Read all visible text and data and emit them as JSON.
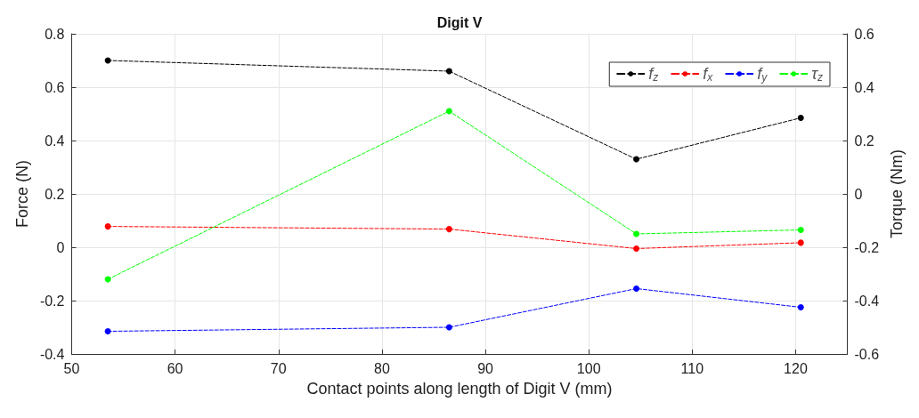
{
  "chart_data": {
    "type": "line",
    "title": "Digit V",
    "xlabel": "Contact points along length of Digit V (mm)",
    "ylabel": "Force (N)",
    "y2label": "Torque (Nm)",
    "x": [
      53.5,
      86.5,
      104.6,
      120.5
    ],
    "series": [
      {
        "name": "f$_{z}$",
        "color": "#000000",
        "values": [
          0.7,
          0.66,
          0.33,
          0.485
        ]
      },
      {
        "name": "f$_{x}$",
        "color": "#ff0000",
        "values": [
          0.078,
          0.068,
          -0.005,
          0.017
        ]
      },
      {
        "name": "f$_{y}$",
        "color": "#0000ff",
        "values": [
          -0.315,
          -0.3,
          -0.155,
          -0.225
        ]
      },
      {
        "name": "τ$_{z}$",
        "color": "#00ff00",
        "axis": "y2",
        "values": [
          -0.32,
          0.31,
          -0.15,
          -0.135
        ]
      }
    ],
    "xlim": [
      50,
      125
    ],
    "xticks": [
      50,
      60,
      70,
      80,
      90,
      100,
      110,
      120
    ],
    "ylim": [
      -0.4,
      0.8
    ],
    "yticks": [
      -0.4,
      -0.2,
      0,
      0.2,
      0.4,
      0.6,
      0.8
    ],
    "y2lim": [
      -0.6,
      0.6
    ],
    "y2ticks": [
      -0.6,
      -0.4,
      -0.2,
      0,
      0.2,
      0.4,
      0.6
    ],
    "grid": true,
    "legend": "top right",
    "marker": "circle",
    "line_style": "dashed"
  }
}
